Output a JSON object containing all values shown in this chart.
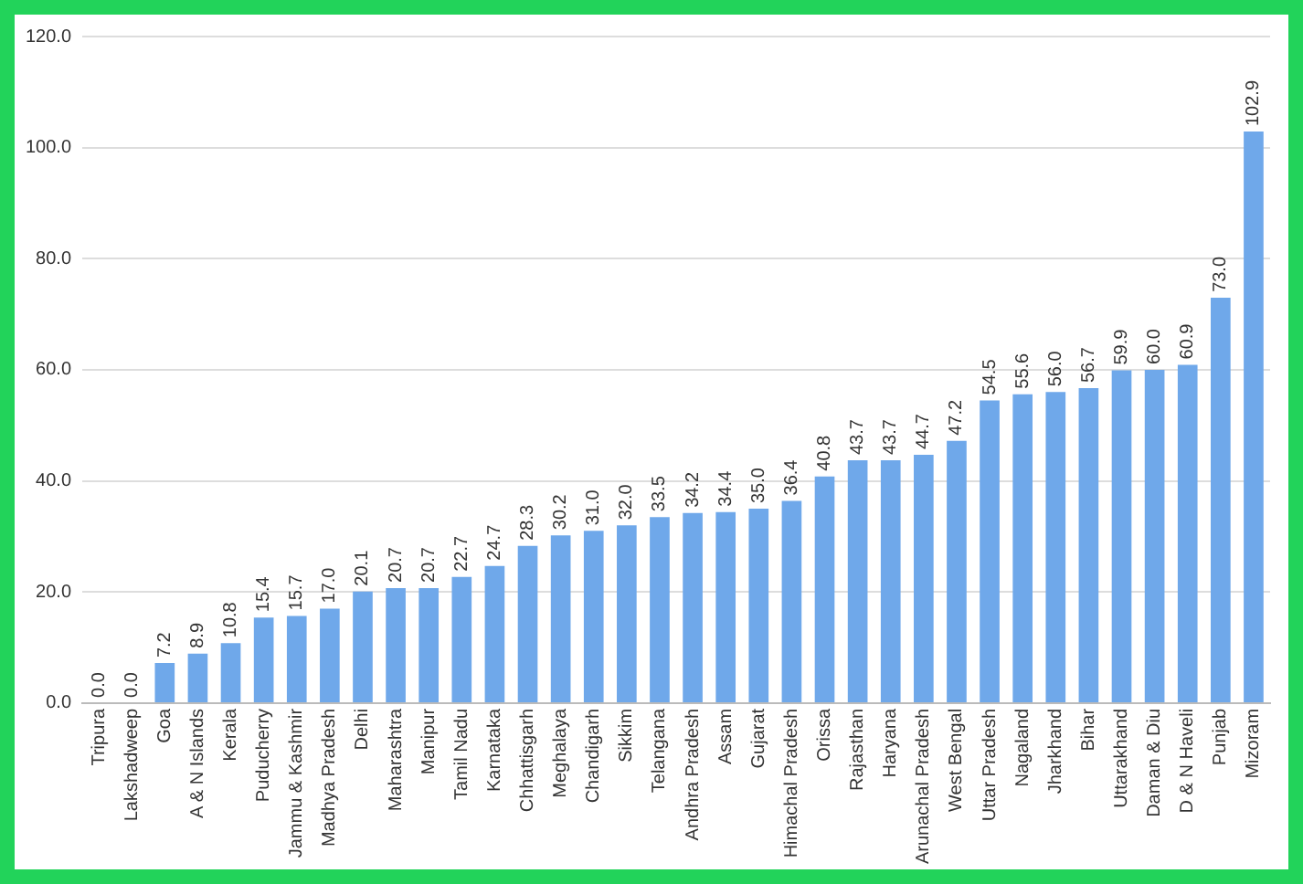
{
  "chart_data": {
    "type": "bar",
    "categories": [
      "Tripura",
      "Lakshadweep",
      "Goa",
      "A & N Islands",
      "Kerala",
      "Puducherry",
      "Jammu & Kashmir",
      "Madhya Pradesh",
      "Delhi",
      "Maharashtra",
      "Manipur",
      "Tamil Nadu",
      "Karnataka",
      "Chhattisgarh",
      "Meghalaya",
      "Chandigarh",
      "Sikkim",
      "Telangana",
      "Andhra Pradesh",
      "Assam",
      "Gujarat",
      "Himachal Pradesh",
      "Orissa",
      "Rajasthan",
      "Haryana",
      "Arunachal Pradesh",
      "West Bengal",
      "Uttar Pradesh",
      "Nagaland",
      "Jharkhand",
      "Bihar",
      "Uttarakhand",
      "Daman & Diu",
      "D & N Haveli",
      "Punjab",
      "Mizoram"
    ],
    "values": [
      0,
      0,
      7.2,
      8.9,
      10.8,
      15.4,
      15.7,
      17.0,
      20.1,
      20.7,
      20.7,
      22.7,
      24.7,
      28.3,
      30.2,
      31.0,
      32.0,
      33.5,
      34.2,
      34.4,
      35.0,
      36.4,
      40.8,
      43.7,
      43.7,
      44.7,
      47.2,
      54.5,
      55.6,
      56.0,
      56.7,
      59.9,
      60.0,
      60.9,
      73.0,
      102.9
    ],
    "value_labels": [
      "0.0",
      "0.0",
      "7.2",
      "8.9",
      "10.8",
      "15.4",
      "15.7",
      "17.0",
      "20.1",
      "20.7",
      "20.7",
      "22.7",
      "24.7",
      "28.3",
      "30.2",
      "31.0",
      "32.0",
      "33.5",
      "34.2",
      "34.4",
      "35.0",
      "36.4",
      "40.8",
      "43.7",
      "43.7",
      "44.7",
      "47.2",
      "54.5",
      "55.6",
      "56.0",
      "56.7",
      "59.9",
      "60.0",
      "60.9",
      "73.0",
      "102.9"
    ],
    "color": "#6fa8ea",
    "ylim": [
      0,
      120
    ],
    "yticks": [
      {
        "value": 0,
        "label": "0.0"
      },
      {
        "value": 20,
        "label": "20.0"
      },
      {
        "value": 40,
        "label": "40.0"
      },
      {
        "value": 60,
        "label": "60.0"
      },
      {
        "value": 80,
        "label": "80.0"
      },
      {
        "value": 100,
        "label": "100.0"
      },
      {
        "value": 120,
        "label": "120.0"
      }
    ],
    "grid": "y",
    "legend": false
  }
}
